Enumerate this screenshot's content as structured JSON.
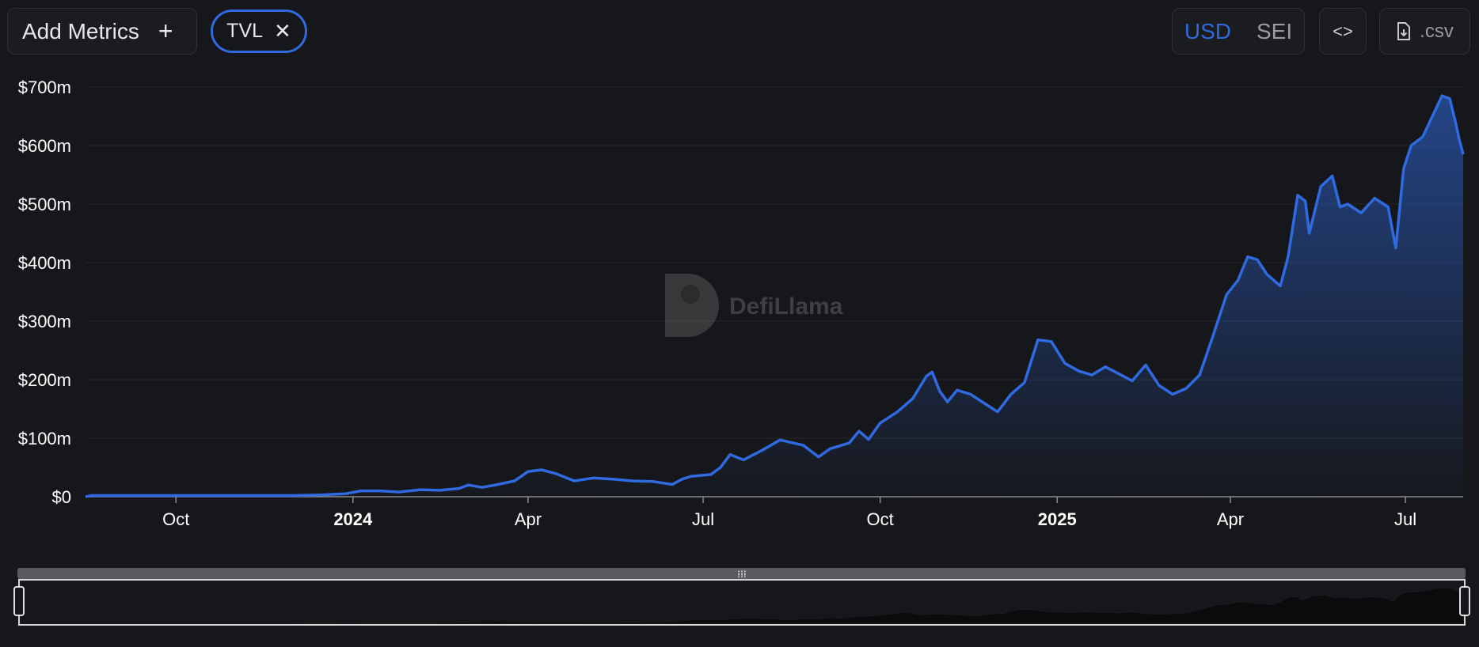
{
  "toolbar": {
    "add_metrics_label": "Add Metrics",
    "add_icon": "plus-icon",
    "metric_chip_label": "TVL",
    "chip_close_icon": "close-icon",
    "currency_options": [
      "USD",
      "SEI"
    ],
    "currency_selected": "USD",
    "embed_icon": "code-icon",
    "csv_label": ".csv",
    "csv_icon": "file-download-icon"
  },
  "watermark": {
    "text": "DefiLlama"
  },
  "colors": {
    "line": "#2f6ae0",
    "background": "#16171a",
    "grid": "#24262b"
  },
  "chart_data": {
    "type": "area",
    "title": "",
    "xlabel": "",
    "ylabel": "",
    "ylim": [
      0,
      700
    ],
    "y_unit": "USD millions",
    "yticks": [
      0,
      100,
      200,
      300,
      400,
      500,
      600,
      700
    ],
    "ytick_labels": [
      "$0",
      "$100m",
      "$200m",
      "$300m",
      "$400m",
      "$500m",
      "$600m",
      "$700m"
    ],
    "xlim": [
      "2023-08-15",
      "2025-07-31"
    ],
    "xticks": [
      {
        "date": "2023-10-01",
        "label": "Oct",
        "bold": false
      },
      {
        "date": "2024-01-01",
        "label": "2024",
        "bold": true
      },
      {
        "date": "2024-04-01",
        "label": "Apr",
        "bold": false
      },
      {
        "date": "2024-07-01",
        "label": "Jul",
        "bold": false
      },
      {
        "date": "2024-10-01",
        "label": "Oct",
        "bold": false
      },
      {
        "date": "2025-01-01",
        "label": "2025",
        "bold": true
      },
      {
        "date": "2025-04-01",
        "label": "Apr",
        "bold": false
      },
      {
        "date": "2025-07-01",
        "label": "Jul",
        "bold": false
      }
    ],
    "grid": true,
    "series": [
      {
        "points": [
          [
            "2023-08-15",
            0
          ],
          [
            "2023-08-18",
            2
          ],
          [
            "2023-09-01",
            2
          ],
          [
            "2023-10-01",
            2
          ],
          [
            "2023-11-01",
            2
          ],
          [
            "2023-12-01",
            2
          ],
          [
            "2023-12-15",
            3
          ],
          [
            "2023-12-28",
            5
          ],
          [
            "2024-01-05",
            10
          ],
          [
            "2024-01-15",
            10
          ],
          [
            "2024-01-25",
            8
          ],
          [
            "2024-02-05",
            12
          ],
          [
            "2024-02-15",
            11
          ],
          [
            "2024-02-25",
            14
          ],
          [
            "2024-03-01",
            20
          ],
          [
            "2024-03-08",
            16
          ],
          [
            "2024-03-15",
            20
          ],
          [
            "2024-03-25",
            27
          ],
          [
            "2024-04-01",
            43
          ],
          [
            "2024-04-08",
            46
          ],
          [
            "2024-04-15",
            40
          ],
          [
            "2024-04-25",
            27
          ],
          [
            "2024-05-05",
            32
          ],
          [
            "2024-05-15",
            30
          ],
          [
            "2024-05-25",
            27
          ],
          [
            "2024-06-05",
            26
          ],
          [
            "2024-06-15",
            21
          ],
          [
            "2024-06-20",
            30
          ],
          [
            "2024-06-25",
            35
          ],
          [
            "2024-07-05",
            38
          ],
          [
            "2024-07-10",
            50
          ],
          [
            "2024-07-15",
            72
          ],
          [
            "2024-07-22",
            63
          ],
          [
            "2024-08-01",
            80
          ],
          [
            "2024-08-10",
            97
          ],
          [
            "2024-08-22",
            88
          ],
          [
            "2024-08-30",
            68
          ],
          [
            "2024-09-05",
            82
          ],
          [
            "2024-09-15",
            92
          ],
          [
            "2024-09-20",
            112
          ],
          [
            "2024-09-25",
            98
          ],
          [
            "2024-10-01",
            126
          ],
          [
            "2024-10-10",
            145
          ],
          [
            "2024-10-18",
            168
          ],
          [
            "2024-10-25",
            206
          ],
          [
            "2024-10-28",
            213
          ],
          [
            "2024-11-01",
            180
          ],
          [
            "2024-11-05",
            162
          ],
          [
            "2024-11-10",
            182
          ],
          [
            "2024-11-17",
            175
          ],
          [
            "2024-11-24",
            160
          ],
          [
            "2024-12-01",
            145
          ],
          [
            "2024-12-08",
            175
          ],
          [
            "2024-12-15",
            195
          ],
          [
            "2024-12-22",
            268
          ],
          [
            "2024-12-29",
            265
          ],
          [
            "2025-01-05",
            228
          ],
          [
            "2025-01-12",
            215
          ],
          [
            "2025-01-19",
            208
          ],
          [
            "2025-01-26",
            222
          ],
          [
            "2025-02-02",
            210
          ],
          [
            "2025-02-09",
            198
          ],
          [
            "2025-02-16",
            225
          ],
          [
            "2025-02-23",
            190
          ],
          [
            "2025-03-02",
            175
          ],
          [
            "2025-03-09",
            185
          ],
          [
            "2025-03-16",
            208
          ],
          [
            "2025-03-23",
            275
          ],
          [
            "2025-03-30",
            345
          ],
          [
            "2025-04-05",
            370
          ],
          [
            "2025-04-10",
            410
          ],
          [
            "2025-04-15",
            405
          ],
          [
            "2025-04-20",
            380
          ],
          [
            "2025-04-27",
            360
          ],
          [
            "2025-05-01",
            410
          ],
          [
            "2025-05-06",
            515
          ],
          [
            "2025-05-10",
            505
          ],
          [
            "2025-05-12",
            450
          ],
          [
            "2025-05-18",
            530
          ],
          [
            "2025-05-24",
            548
          ],
          [
            "2025-05-28",
            495
          ],
          [
            "2025-06-01",
            500
          ],
          [
            "2025-06-08",
            485
          ],
          [
            "2025-06-15",
            510
          ],
          [
            "2025-06-22",
            495
          ],
          [
            "2025-06-26",
            425
          ],
          [
            "2025-06-30",
            560
          ],
          [
            "2025-07-04",
            600
          ],
          [
            "2025-07-10",
            615
          ],
          [
            "2025-07-15",
            650
          ],
          [
            "2025-07-20",
            685
          ],
          [
            "2025-07-24",
            680
          ],
          [
            "2025-07-27",
            640
          ],
          [
            "2025-07-29",
            610
          ],
          [
            "2025-07-31",
            585
          ]
        ]
      }
    ]
  }
}
